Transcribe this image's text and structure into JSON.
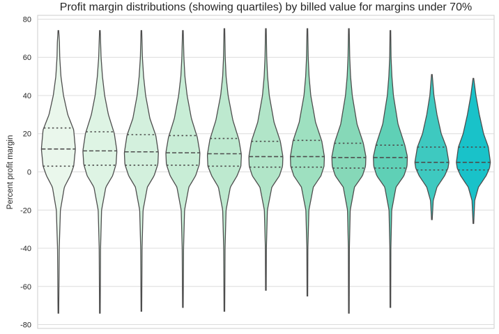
{
  "chart_data": {
    "type": "violin",
    "title": "Profit margin distributions (showing quartiles) by billed value for margins under 70%",
    "xlabel": "",
    "ylabel": "Percent profit margin",
    "ylim": [
      -82,
      82
    ],
    "yticks": [
      80,
      60,
      40,
      20,
      0,
      -20,
      -40,
      -60,
      -80
    ],
    "grid": "horizontal",
    "legend": "none",
    "violins": [
      {
        "color": "#eaf7ec",
        "min": -74,
        "max": 74,
        "q1": 3,
        "median": 12,
        "q3": 23,
        "density": [
          [
            -74,
            0.02
          ],
          [
            -40,
            0.05
          ],
          [
            -20,
            0.12
          ],
          [
            -8,
            0.35
          ],
          [
            -2,
            0.7
          ],
          [
            3,
            0.9
          ],
          [
            12,
            1.0
          ],
          [
            22,
            0.9
          ],
          [
            30,
            0.55
          ],
          [
            40,
            0.3
          ],
          [
            50,
            0.15
          ],
          [
            60,
            0.08
          ],
          [
            68,
            0.06
          ],
          [
            74,
            0.02
          ]
        ]
      },
      {
        "color": "#def4e4",
        "min": -74,
        "max": 74,
        "q1": 3.5,
        "median": 11,
        "q3": 21,
        "density": [
          [
            -74,
            0.02
          ],
          [
            -40,
            0.04
          ],
          [
            -20,
            0.1
          ],
          [
            -8,
            0.35
          ],
          [
            -2,
            0.75
          ],
          [
            4,
            0.95
          ],
          [
            11,
            1.0
          ],
          [
            20,
            0.85
          ],
          [
            30,
            0.5
          ],
          [
            40,
            0.28
          ],
          [
            50,
            0.15
          ],
          [
            60,
            0.07
          ],
          [
            74,
            0.02
          ]
        ]
      },
      {
        "color": "#d3f0dd",
        "min": -73,
        "max": 74,
        "q1": 3.5,
        "median": 10.5,
        "q3": 19.5,
        "density": [
          [
            -73,
            0.02
          ],
          [
            -40,
            0.04
          ],
          [
            -20,
            0.1
          ],
          [
            -8,
            0.35
          ],
          [
            -2,
            0.75
          ],
          [
            4,
            0.97
          ],
          [
            10,
            1.0
          ],
          [
            19,
            0.85
          ],
          [
            28,
            0.5
          ],
          [
            40,
            0.25
          ],
          [
            50,
            0.13
          ],
          [
            60,
            0.06
          ],
          [
            74,
            0.02
          ]
        ]
      },
      {
        "color": "#c8edd6",
        "min": -71,
        "max": 74,
        "q1": 3.5,
        "median": 10,
        "q3": 19,
        "density": [
          [
            -71,
            0.02
          ],
          [
            -40,
            0.04
          ],
          [
            -20,
            0.1
          ],
          [
            -8,
            0.35
          ],
          [
            -2,
            0.75
          ],
          [
            4,
            0.97
          ],
          [
            10,
            1.0
          ],
          [
            18,
            0.85
          ],
          [
            28,
            0.5
          ],
          [
            40,
            0.25
          ],
          [
            50,
            0.12
          ],
          [
            60,
            0.06
          ],
          [
            74,
            0.02
          ]
        ]
      },
      {
        "color": "#bde9cf",
        "min": -73,
        "max": 75,
        "q1": 3,
        "median": 9.5,
        "q3": 17.5,
        "density": [
          [
            -73,
            0.02
          ],
          [
            -40,
            0.04
          ],
          [
            -20,
            0.1
          ],
          [
            -8,
            0.35
          ],
          [
            -2,
            0.75
          ],
          [
            3,
            0.97
          ],
          [
            9,
            1.0
          ],
          [
            17,
            0.85
          ],
          [
            27,
            0.5
          ],
          [
            40,
            0.22
          ],
          [
            50,
            0.1
          ],
          [
            60,
            0.05
          ],
          [
            75,
            0.02
          ]
        ]
      },
      {
        "color": "#b1e5c8",
        "min": -62,
        "max": 75,
        "q1": 2.5,
        "median": 8,
        "q3": 16,
        "density": [
          [
            -62,
            0.02
          ],
          [
            -40,
            0.03
          ],
          [
            -20,
            0.09
          ],
          [
            -8,
            0.35
          ],
          [
            -2,
            0.8
          ],
          [
            3,
            0.98
          ],
          [
            8,
            1.0
          ],
          [
            16,
            0.85
          ],
          [
            26,
            0.48
          ],
          [
            40,
            0.2
          ],
          [
            50,
            0.1
          ],
          [
            60,
            0.05
          ],
          [
            75,
            0.02
          ]
        ]
      },
      {
        "color": "#9ee0c0",
        "min": -65,
        "max": 75,
        "q1": 2.5,
        "median": 8,
        "q3": 16.5,
        "density": [
          [
            -65,
            0.02
          ],
          [
            -40,
            0.03
          ],
          [
            -20,
            0.09
          ],
          [
            -8,
            0.35
          ],
          [
            -2,
            0.8
          ],
          [
            3,
            0.98
          ],
          [
            8,
            1.0
          ],
          [
            16,
            0.85
          ],
          [
            26,
            0.48
          ],
          [
            40,
            0.2
          ],
          [
            50,
            0.1
          ],
          [
            60,
            0.05
          ],
          [
            75,
            0.02
          ]
        ]
      },
      {
        "color": "#86d8b8",
        "min": -74,
        "max": 75,
        "q1": 2,
        "median": 7.5,
        "q3": 15,
        "density": [
          [
            -74,
            0.02
          ],
          [
            -40,
            0.03
          ],
          [
            -20,
            0.08
          ],
          [
            -8,
            0.33
          ],
          [
            -2,
            0.8
          ],
          [
            3,
            0.98
          ],
          [
            8,
            1.0
          ],
          [
            15,
            0.85
          ],
          [
            25,
            0.48
          ],
          [
            40,
            0.2
          ],
          [
            50,
            0.1
          ],
          [
            60,
            0.05
          ],
          [
            75,
            0.02
          ]
        ]
      },
      {
        "color": "#5fd0b6",
        "min": -71,
        "max": 74,
        "q1": 2,
        "median": 7.5,
        "q3": 14,
        "density": [
          [
            -71,
            0.02
          ],
          [
            -40,
            0.03
          ],
          [
            -20,
            0.08
          ],
          [
            -8,
            0.33
          ],
          [
            -2,
            0.8
          ],
          [
            3,
            0.98
          ],
          [
            8,
            1.0
          ],
          [
            14,
            0.85
          ],
          [
            25,
            0.45
          ],
          [
            40,
            0.18
          ],
          [
            50,
            0.09
          ],
          [
            60,
            0.04
          ],
          [
            74,
            0.02
          ]
        ]
      },
      {
        "color": "#3ec9c0",
        "min": -25,
        "max": 51,
        "q1": 1,
        "median": 5,
        "q3": 13,
        "density": [
          [
            -25,
            0.02
          ],
          [
            -15,
            0.08
          ],
          [
            -8,
            0.3
          ],
          [
            -2,
            0.75
          ],
          [
            2,
            0.95
          ],
          [
            5,
            1.0
          ],
          [
            13,
            0.85
          ],
          [
            20,
            0.55
          ],
          [
            30,
            0.3
          ],
          [
            40,
            0.12
          ],
          [
            51,
            0.02
          ]
        ]
      },
      {
        "color": "#19c2c9",
        "min": -27,
        "max": 49,
        "q1": 1,
        "median": 5,
        "q3": 13,
        "density": [
          [
            -27,
            0.02
          ],
          [
            -15,
            0.08
          ],
          [
            -8,
            0.3
          ],
          [
            -2,
            0.75
          ],
          [
            2,
            0.95
          ],
          [
            5,
            1.0
          ],
          [
            13,
            0.88
          ],
          [
            20,
            0.6
          ],
          [
            30,
            0.35
          ],
          [
            40,
            0.15
          ],
          [
            49,
            0.02
          ]
        ]
      }
    ]
  }
}
